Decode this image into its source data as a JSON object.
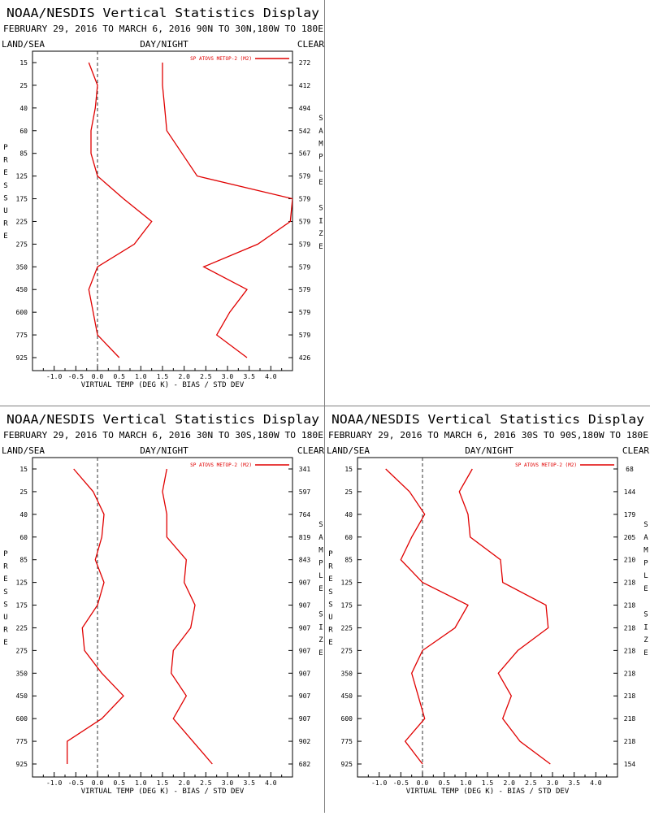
{
  "panels": [
    {
      "title": "NOAA/NESDIS Vertical Statistics Display",
      "subtitle": "FEBRUARY 29, 2016 TO MARCH 6, 2016 90N TO 30N,180W TO 180E",
      "header_left": "LAND/SEA",
      "header_center": "DAY/NIGHT",
      "header_right": "CLEAR",
      "chart_data": {
        "type": "line",
        "xlabel": "VIRTUAL TEMP (DEG K) - BIAS / STD DEV",
        "ylabel_left": "PRESSURE",
        "ylabel_right": "SAMPLE SIZE",
        "xlim": [
          -1.5,
          4.5
        ],
        "x_ticks": [
          "-1.0",
          "-0.5",
          "0.0",
          "0.5",
          "1.0",
          "1.5",
          "2.0",
          "2.5",
          "3.0",
          "3.5",
          "4.0"
        ],
        "pressure_levels": [
          "15",
          "25",
          "40",
          "60",
          "85",
          "125",
          "175",
          "225",
          "275",
          "350",
          "450",
          "600",
          "775",
          "925"
        ],
        "sample_size": [
          "272",
          "412",
          "494",
          "542",
          "567",
          "579",
          "579",
          "579",
          "579",
          "579",
          "579",
          "579",
          "579",
          "426"
        ],
        "legend": "SP ATOVS METOP-2 (M2)",
        "legend_position": "top-right",
        "series": [
          {
            "role": "bias",
            "values": [
              -0.2,
              0.0,
              -0.05,
              -0.15,
              -0.15,
              0.0,
              0.6,
              1.25,
              0.85,
              0.0,
              -0.2,
              -0.1,
              0.0,
              0.5
            ]
          },
          {
            "role": "std_dev",
            "values": [
              1.5,
              1.5,
              1.55,
              1.6,
              1.95,
              2.3,
              4.5,
              4.45,
              3.7,
              2.45,
              3.45,
              3.05,
              2.75,
              3.45
            ]
          }
        ],
        "bias_x_start": 0,
        "std_x_start": 0,
        "color": "#e00000"
      }
    },
    {
      "title": "NOAA/NESDIS Vertical Statistics Display",
      "subtitle": "FEBRUARY 29, 2016 TO MARCH 6, 2016 30N TO 30S,180W TO 180E",
      "header_left": "LAND/SEA",
      "header_center": "DAY/NIGHT",
      "header_right": "CLEAR",
      "chart_data": {
        "type": "line",
        "xlabel": "VIRTUAL TEMP (DEG K) - BIAS / STD DEV",
        "ylabel_left": "PRESSURE",
        "ylabel_right": "SAMPLE SIZE",
        "xlim": [
          -1.5,
          4.5
        ],
        "x_ticks": [
          "-1.0",
          "-0.5",
          "0.0",
          "0.5",
          "1.0",
          "1.5",
          "2.0",
          "2.5",
          "3.0",
          "3.5",
          "4.0"
        ],
        "pressure_levels": [
          "15",
          "25",
          "40",
          "60",
          "85",
          "125",
          "175",
          "225",
          "275",
          "350",
          "450",
          "600",
          "775",
          "925"
        ],
        "sample_size": [
          "341",
          "597",
          "764",
          "819",
          "843",
          "907",
          "907",
          "907",
          "907",
          "907",
          "907",
          "907",
          "902",
          "682"
        ],
        "legend": "SP ATOVS METOP-2 (M2)",
        "legend_position": "top-right",
        "series": [
          {
            "role": "bias",
            "values": [
              -0.55,
              -0.1,
              0.15,
              0.1,
              -0.05,
              0.15,
              0.0,
              -0.35,
              -0.3,
              0.1,
              0.6,
              0.1,
              -0.7,
              -0.7
            ]
          },
          {
            "role": "std_dev",
            "values": [
              1.6,
              1.5,
              1.6,
              1.6,
              2.05,
              2.0,
              2.25,
              2.15,
              1.75,
              1.7,
              2.05,
              1.75,
              2.2,
              2.65
            ]
          },
          {
            "role": "std_dev_start",
            "values": [
              1.6
            ]
          }
        ],
        "color": "#e00000"
      }
    },
    {
      "title": "NOAA/NESDIS Vertical Statistics Display",
      "subtitle": "FEBRUARY 29, 2016 TO MARCH 6, 2016 30S TO 90S,180W TO 180E",
      "header_left": "LAND/SEA",
      "header_center": "DAY/NIGHT",
      "header_right": "CLEAR",
      "chart_data": {
        "type": "line",
        "xlabel": "VIRTUAL TEMP (DEG K) - BIAS / STD DEV",
        "ylabel_left": "PRESSURE",
        "ylabel_right": "SAMPLE SIZE",
        "xlim": [
          -1.5,
          4.5
        ],
        "x_ticks": [
          "-1.0",
          "-0.5",
          "0.0",
          "0.5",
          "1.0",
          "1.5",
          "2.0",
          "2.5",
          "3.0",
          "3.5",
          "4.0"
        ],
        "pressure_levels": [
          "15",
          "25",
          "40",
          "60",
          "85",
          "125",
          "175",
          "225",
          "275",
          "350",
          "450",
          "600",
          "775",
          "925"
        ],
        "sample_size": [
          "68",
          "144",
          "179",
          "205",
          "210",
          "218",
          "218",
          "218",
          "218",
          "218",
          "218",
          "218",
          "218",
          "154"
        ],
        "legend": "SP ATOVS METOP-2 (M2)",
        "legend_position": "top-right",
        "series": [
          {
            "role": "bias",
            "values": [
              -0.85,
              -0.3,
              0.05,
              -0.25,
              -0.5,
              0.0,
              1.05,
              0.75,
              0.0,
              -0.25,
              -0.1,
              0.05,
              -0.4,
              0.0
            ]
          },
          {
            "role": "std_dev",
            "values": [
              1.15,
              0.85,
              1.05,
              1.1,
              1.8,
              1.85,
              2.85,
              2.9,
              2.2,
              1.75,
              2.05,
              1.85,
              2.25,
              2.95
            ]
          }
        ],
        "color": "#e00000"
      }
    }
  ]
}
